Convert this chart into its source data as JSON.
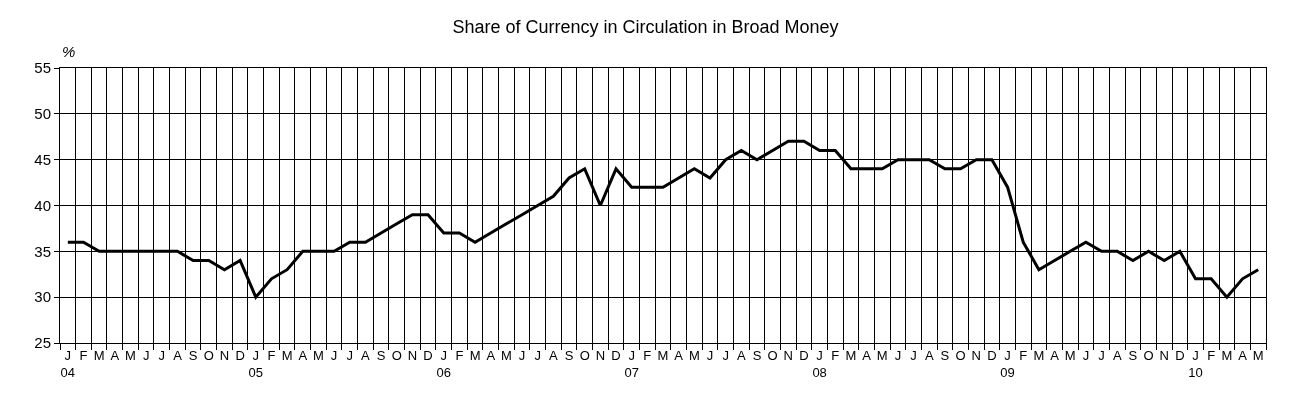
{
  "chart_data": {
    "type": "line",
    "title": "Share of Currency in Circulation in Broad Money",
    "ylabel": "%",
    "categories": [
      "J\n04",
      "F",
      "M",
      "A",
      "M",
      "J",
      "J",
      "A",
      "S",
      "O",
      "N",
      "D",
      "J\n05",
      "F",
      "M",
      "A",
      "M",
      "J",
      "J",
      "A",
      "S",
      "O",
      "N",
      "D",
      "J\n06",
      "F",
      "M",
      "A",
      "M",
      "J",
      "J",
      "A",
      "S",
      "O",
      "N",
      "D",
      "J\n07",
      "F",
      "M",
      "A",
      "M",
      "J",
      "J",
      "A",
      "S",
      "O",
      "N",
      "D",
      "J\n08",
      "F",
      "M",
      "A",
      "M",
      "J",
      "J",
      "A",
      "S",
      "O",
      "N",
      "D",
      "J\n09",
      "F",
      "M",
      "A",
      "M",
      "J",
      "J",
      "A",
      "S",
      "O",
      "N",
      "D",
      "J\n10",
      "F",
      "M",
      "A",
      "M"
    ],
    "series": [
      {
        "color": "#000000",
        "values": [
          36,
          36,
          35,
          35,
          35,
          35,
          35,
          35,
          34,
          34,
          33,
          34,
          30,
          32,
          33,
          35,
          35,
          35,
          36,
          36,
          37,
          38,
          39,
          39,
          37,
          37,
          36,
          37,
          38,
          39,
          40,
          41,
          43,
          44,
          40,
          44,
          42,
          42,
          42,
          43,
          44,
          43,
          45,
          46,
          45,
          46,
          47,
          47,
          46,
          46,
          44,
          44,
          44,
          45,
          45,
          45,
          44,
          44,
          45,
          45,
          42,
          36,
          33,
          34,
          35,
          36,
          35,
          35,
          34,
          35,
          34,
          35,
          32,
          32,
          30,
          32,
          33
        ]
      }
    ],
    "ylim": [
      25,
      55
    ],
    "yticks": [
      25,
      30,
      35,
      40,
      45,
      50,
      55
    ],
    "grid": true,
    "marker": "none",
    "line_style": "solid"
  }
}
